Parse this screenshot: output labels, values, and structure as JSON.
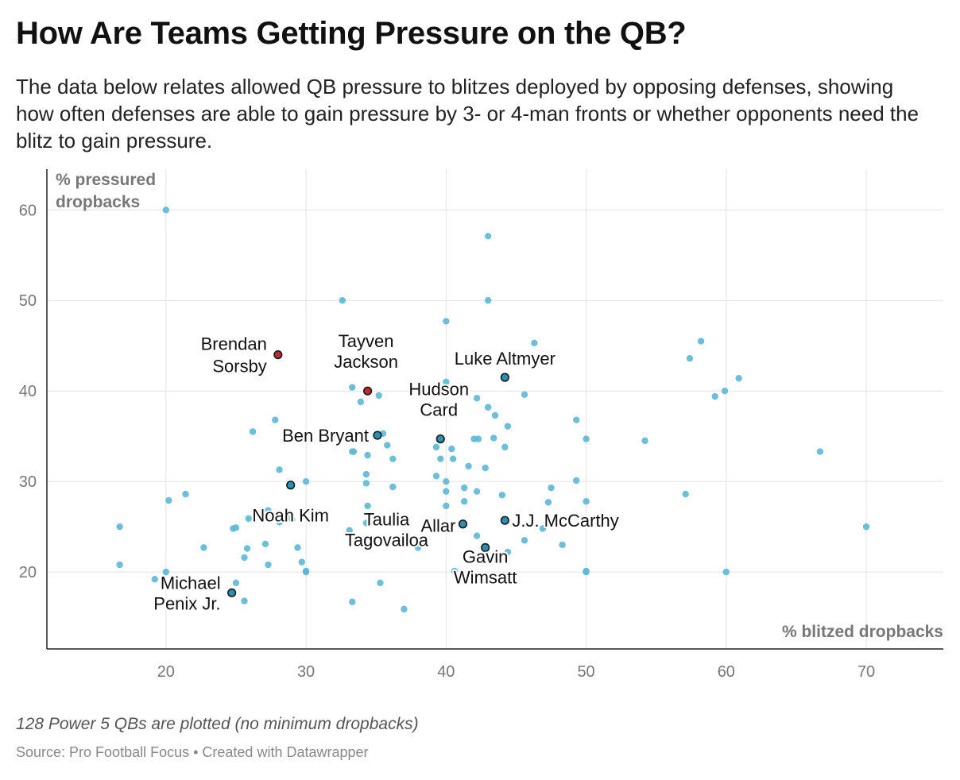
{
  "title": "How Are Teams Getting Pressure on the QB?",
  "subtitle": "The data below relates allowed QB pressure to blitzes deployed by opposing defenses, showing how often defenses are able to gain pressure by 3- or 4-man fronts or whether opponents need the blitz to gain pressure.",
  "notes": "128 Power 5 QBs are plotted (no minimum dropbacks)",
  "source": "Source: Pro Football Focus • Created with Datawrapper",
  "colors": {
    "point": "#5bb8d6",
    "highlight": "#2a8fb0",
    "red": "#c0282d",
    "grid": "#e2e2e2",
    "axis": "#222222"
  },
  "chart_data": {
    "type": "scatter",
    "xlabel": "% blitzed dropbacks",
    "ylabel": "% pressured dropbacks",
    "xlim": [
      11.5,
      75.5
    ],
    "ylim": [
      11.5,
      64.5
    ],
    "xticks": [
      20,
      30,
      40,
      50,
      60,
      70
    ],
    "yticks": [
      20,
      30,
      40,
      50,
      60
    ],
    "grid": true,
    "points": [
      [
        20,
        60
      ],
      [
        43,
        57.1
      ],
      [
        32.6,
        50
      ],
      [
        43,
        50
      ],
      [
        40,
        47.7
      ],
      [
        46.3,
        45.3
      ],
      [
        58.2,
        45.5
      ],
      [
        57.4,
        43.6
      ],
      [
        60.9,
        41.4
      ],
      [
        59.9,
        40
      ],
      [
        59.2,
        39.4
      ],
      [
        45.6,
        39.6
      ],
      [
        40,
        41
      ],
      [
        35.8,
        43
      ],
      [
        33.3,
        40.4
      ],
      [
        35.2,
        39.5
      ],
      [
        33.9,
        38.8
      ],
      [
        42.2,
        39.2
      ],
      [
        43,
        38.2
      ],
      [
        39.8,
        37.5
      ],
      [
        43.5,
        37.3
      ],
      [
        44.4,
        36.1
      ],
      [
        49.3,
        36.8
      ],
      [
        50,
        34.7
      ],
      [
        54.2,
        34.5
      ],
      [
        27.8,
        36.8
      ],
      [
        26.2,
        35.5
      ],
      [
        35.5,
        35.3
      ],
      [
        35.8,
        34
      ],
      [
        36.2,
        32.5
      ],
      [
        34.4,
        32.9
      ],
      [
        33.4,
        33.3
      ],
      [
        33.3,
        33.3
      ],
      [
        39.3,
        33.8
      ],
      [
        40.4,
        33.6
      ],
      [
        39.6,
        32.5
      ],
      [
        40.5,
        32.5
      ],
      [
        42,
        34.7
      ],
      [
        42.3,
        34.7
      ],
      [
        43.4,
        34.8
      ],
      [
        44.2,
        33.8
      ],
      [
        41.6,
        31.7
      ],
      [
        42.8,
        31.5
      ],
      [
        39.3,
        30.6
      ],
      [
        40,
        30
      ],
      [
        34.3,
        30.8
      ],
      [
        34.3,
        29.8
      ],
      [
        36.2,
        29.4
      ],
      [
        30,
        30
      ],
      [
        28.1,
        31.3
      ],
      [
        41.3,
        29.3
      ],
      [
        42.2,
        28.9
      ],
      [
        40,
        28.9
      ],
      [
        44,
        28.5
      ],
      [
        47.5,
        29.3
      ],
      [
        47.3,
        27.7
      ],
      [
        49.3,
        30.1
      ],
      [
        50,
        27.8
      ],
      [
        57.1,
        28.6
      ],
      [
        66.7,
        33.3
      ],
      [
        40,
        27.3
      ],
      [
        41.3,
        27.8
      ],
      [
        34.4,
        27.3
      ],
      [
        28.6,
        26.1
      ],
      [
        29,
        25.8
      ],
      [
        28.1,
        25.5
      ],
      [
        27.3,
        26.8
      ],
      [
        25.9,
        25.9
      ],
      [
        25,
        24.9
      ],
      [
        24.8,
        24.8
      ],
      [
        16.7,
        25
      ],
      [
        20.2,
        27.9
      ],
      [
        21.4,
        28.6
      ],
      [
        22.7,
        22.7
      ],
      [
        25.8,
        22.6
      ],
      [
        27.1,
        23.1
      ],
      [
        25.6,
        21.6
      ],
      [
        29.4,
        22.7
      ],
      [
        29.7,
        21.1
      ],
      [
        27.3,
        20.8
      ],
      [
        30,
        20
      ],
      [
        30,
        20.1
      ],
      [
        16.7,
        20.8
      ],
      [
        19.2,
        19.2
      ],
      [
        20,
        20
      ],
      [
        25,
        18.8
      ],
      [
        25.6,
        16.8
      ],
      [
        33.1,
        24.6
      ],
      [
        34.3,
        25.4
      ],
      [
        38,
        22.7
      ],
      [
        35.3,
        18.8
      ],
      [
        33.3,
        16.7
      ],
      [
        37,
        15.9
      ],
      [
        40.6,
        20.1
      ],
      [
        42.2,
        24
      ],
      [
        44.4,
        22.2
      ],
      [
        45.6,
        23.5
      ],
      [
        46.9,
        24.8
      ],
      [
        48.3,
        23
      ],
      [
        50,
        20
      ],
      [
        50,
        20.1
      ],
      [
        60,
        20
      ],
      [
        70,
        25
      ]
    ],
    "highlighted": [
      {
        "name": "Brendan Sorsby",
        "x": 28,
        "y": 44,
        "color": "red",
        "lines": [
          "Brendan",
          "Sorsby"
        ],
        "anchor": "end"
      },
      {
        "name": "Tayven Jackson",
        "x": 34.4,
        "y": 40,
        "color": "red",
        "lines": [
          "Tayven",
          "Jackson"
        ],
        "anchor": "middle"
      },
      {
        "name": "Luke Altmyer",
        "x": 44.2,
        "y": 41.5,
        "color": "highlight",
        "lines": [
          "Luke Altmyer"
        ],
        "anchor": "middle"
      },
      {
        "name": "Hudson Card",
        "x": 39.6,
        "y": 34.7,
        "color": "highlight",
        "lines": [
          "Hudson",
          "Card"
        ],
        "anchor": "middle"
      },
      {
        "name": "Ben Bryant",
        "x": 35.1,
        "y": 35.1,
        "color": "highlight",
        "lines": [
          "Ben Bryant"
        ],
        "anchor": "end"
      },
      {
        "name": "Noah Kim",
        "x": 28.9,
        "y": 29.6,
        "color": "highlight",
        "lines": [
          "Noah Kim"
        ],
        "anchor": "middle"
      },
      {
        "name": "Taulia Tagovailoa",
        "x": 41.2,
        "y": 25.3,
        "color": "highlight",
        "lines": [
          "Taulia",
          "Tagovailoa"
        ],
        "anchor": "middle"
      },
      {
        "name": "Allar",
        "x": 41.2,
        "y": 25.3,
        "color": "highlight",
        "lines": [
          "Allar"
        ],
        "anchor": "end"
      },
      {
        "name": "J.J. McCarthy",
        "x": 44.2,
        "y": 25.7,
        "color": "highlight",
        "lines": [
          "J.J. McCarthy"
        ],
        "anchor": "start"
      },
      {
        "name": "Gavin Wimsatt",
        "x": 42.8,
        "y": 22.7,
        "color": "highlight",
        "lines": [
          "Gavin",
          "Wimsatt"
        ],
        "anchor": "middle"
      },
      {
        "name": "Michael Penix Jr.",
        "x": 24.7,
        "y": 17.7,
        "color": "highlight",
        "lines": [
          "Michael",
          "Penix Jr."
        ],
        "anchor": "end"
      }
    ]
  }
}
